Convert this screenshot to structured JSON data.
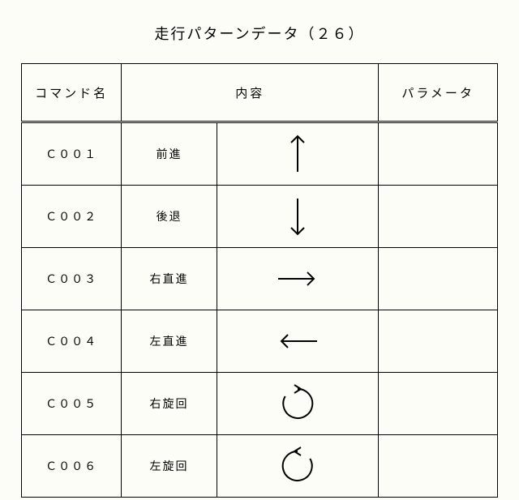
{
  "title": "走行パターンデータ（２６）",
  "headers": {
    "cmd": "コマンド名",
    "content": "内容",
    "param": "パラメータ"
  },
  "rows": [
    {
      "cmd": "Ｃ００１",
      "desc": "前進",
      "icon": "arrow-up",
      "param": ""
    },
    {
      "cmd": "Ｃ００２",
      "desc": "後退",
      "icon": "arrow-down",
      "param": ""
    },
    {
      "cmd": "Ｃ００３",
      "desc": "右直進",
      "icon": "arrow-right",
      "param": ""
    },
    {
      "cmd": "Ｃ００４",
      "desc": "左直進",
      "icon": "arrow-left",
      "param": ""
    },
    {
      "cmd": "Ｃ００５",
      "desc": "右旋回",
      "icon": "rotate-cw",
      "param": ""
    },
    {
      "cmd": "Ｃ００６",
      "desc": "左旋回",
      "icon": "rotate-ccw",
      "param": ""
    }
  ],
  "style": {
    "stroke": "#000000",
    "stroke_width": 2,
    "arrow_len": 44,
    "circle_r": 18
  }
}
